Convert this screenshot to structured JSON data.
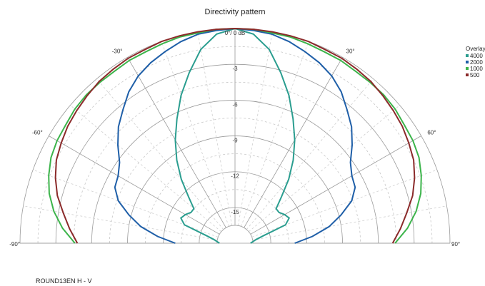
{
  "chart_data": {
    "type": "polar",
    "title": "Directivity pattern",
    "subtitle": "",
    "r_axis": {
      "unit": "dB",
      "ring_values": [
        0,
        -3,
        -6,
        -9,
        -12,
        -15
      ],
      "ring_labels": [
        "0°/ 0 dB",
        "-3",
        "-6",
        "-9",
        "-12",
        "-15"
      ],
      "min": -18,
      "max": 0
    },
    "angle_axis": {
      "range": [
        -90,
        90
      ],
      "labels": [
        "-90°",
        "-60°",
        "-30°",
        "30°",
        "60°",
        "90°"
      ],
      "label_angles": [
        -90,
        -60,
        -30,
        30,
        60,
        90
      ]
    },
    "grid": true,
    "legend": {
      "title": "Overlay",
      "position": "top-right"
    },
    "series": [
      {
        "name": "4000",
        "color": "#2a9d8f",
        "points": [
          [
            -90,
            -16.7
          ],
          [
            -85,
            -16.5
          ],
          [
            -80,
            -16.2
          ],
          [
            -75,
            -15.5
          ],
          [
            -70,
            -13.5
          ],
          [
            -65,
            -13.0
          ],
          [
            -60,
            -13.2
          ],
          [
            -55,
            -13.5
          ],
          [
            -50,
            -13.5
          ],
          [
            -45,
            -12.5
          ],
          [
            -40,
            -11.0
          ],
          [
            -35,
            -9.5
          ],
          [
            -30,
            -8.0
          ],
          [
            -25,
            -6.5
          ],
          [
            -20,
            -4.8
          ],
          [
            -15,
            -3.2
          ],
          [
            -10,
            -1.5
          ],
          [
            -5,
            -0.4
          ],
          [
            0,
            0
          ],
          [
            5,
            -0.4
          ],
          [
            10,
            -1.5
          ],
          [
            15,
            -3.2
          ],
          [
            20,
            -4.8
          ],
          [
            25,
            -6.5
          ],
          [
            30,
            -8.0
          ],
          [
            35,
            -9.5
          ],
          [
            40,
            -11.0
          ],
          [
            45,
            -12.5
          ],
          [
            50,
            -13.5
          ],
          [
            55,
            -13.5
          ],
          [
            60,
            -13.2
          ],
          [
            65,
            -13.0
          ],
          [
            70,
            -13.5
          ],
          [
            75,
            -15.5
          ],
          [
            80,
            -16.2
          ],
          [
            85,
            -16.5
          ],
          [
            90,
            -16.7
          ]
        ]
      },
      {
        "name": "2000",
        "color": "#1f5fa8",
        "points": [
          [
            -90,
            -13.0
          ],
          [
            -85,
            -11.5
          ],
          [
            -80,
            -10.0
          ],
          [
            -75,
            -8.8
          ],
          [
            -70,
            -7.6
          ],
          [
            -65,
            -6.9
          ],
          [
            -60,
            -6.7
          ],
          [
            -55,
            -6.2
          ],
          [
            -50,
            -5.2
          ],
          [
            -45,
            -4.2
          ],
          [
            -40,
            -3.4
          ],
          [
            -35,
            -2.5
          ],
          [
            -30,
            -1.8
          ],
          [
            -25,
            -1.3
          ],
          [
            -20,
            -0.9
          ],
          [
            -15,
            -0.5
          ],
          [
            -10,
            -0.2
          ],
          [
            -5,
            -0.1
          ],
          [
            0,
            0
          ],
          [
            5,
            -0.1
          ],
          [
            10,
            -0.2
          ],
          [
            15,
            -0.5
          ],
          [
            20,
            -0.9
          ],
          [
            25,
            -1.3
          ],
          [
            30,
            -1.8
          ],
          [
            35,
            -2.5
          ],
          [
            40,
            -3.4
          ],
          [
            45,
            -4.2
          ],
          [
            50,
            -5.2
          ],
          [
            55,
            -6.2
          ],
          [
            60,
            -6.7
          ],
          [
            65,
            -6.9
          ],
          [
            70,
            -7.6
          ],
          [
            75,
            -8.8
          ],
          [
            80,
            -10.0
          ],
          [
            85,
            -11.5
          ],
          [
            90,
            -13.0
          ]
        ]
      },
      {
        "name": "1000",
        "color": "#3cb44b",
        "points": [
          [
            -90,
            -4.6
          ],
          [
            -85,
            -3.5
          ],
          [
            -80,
            -2.6
          ],
          [
            -75,
            -1.9
          ],
          [
            -70,
            -1.4
          ],
          [
            -65,
            -1.0
          ],
          [
            -60,
            -0.8
          ],
          [
            -55,
            -0.7
          ],
          [
            -50,
            -0.5
          ],
          [
            -45,
            -0.4
          ],
          [
            -40,
            -0.4
          ],
          [
            -35,
            -0.4
          ],
          [
            -30,
            -0.3
          ],
          [
            -25,
            -0.3
          ],
          [
            -20,
            -0.2
          ],
          [
            -15,
            -0.1
          ],
          [
            -10,
            -0.1
          ],
          [
            -5,
            0
          ],
          [
            0,
            0
          ],
          [
            5,
            0
          ],
          [
            10,
            -0.1
          ],
          [
            15,
            -0.1
          ],
          [
            20,
            -0.2
          ],
          [
            25,
            -0.3
          ],
          [
            30,
            -0.3
          ],
          [
            35,
            -0.4
          ],
          [
            40,
            -0.4
          ],
          [
            45,
            -0.4
          ],
          [
            50,
            -0.5
          ],
          [
            55,
            -0.7
          ],
          [
            60,
            -0.8
          ],
          [
            65,
            -1.0
          ],
          [
            70,
            -1.4
          ],
          [
            75,
            -1.9
          ],
          [
            80,
            -2.6
          ],
          [
            85,
            -3.5
          ],
          [
            90,
            -4.6
          ]
        ]
      },
      {
        "name": "500",
        "color": "#8b2a2a",
        "points": [
          [
            -90,
            -4.8
          ],
          [
            -85,
            -4.1
          ],
          [
            -80,
            -3.4
          ],
          [
            -75,
            -2.6
          ],
          [
            -70,
            -2.0
          ],
          [
            -65,
            -1.5
          ],
          [
            -60,
            -1.2
          ],
          [
            -55,
            -0.9
          ],
          [
            -50,
            -0.7
          ],
          [
            -45,
            -0.5
          ],
          [
            -40,
            -0.3
          ],
          [
            -35,
            -0.2
          ],
          [
            -30,
            -0.1
          ],
          [
            -25,
            -0.1
          ],
          [
            -20,
            0
          ],
          [
            -15,
            0
          ],
          [
            -10,
            0
          ],
          [
            -5,
            0
          ],
          [
            0,
            0
          ],
          [
            5,
            0
          ],
          [
            10,
            0
          ],
          [
            15,
            0
          ],
          [
            20,
            0
          ],
          [
            25,
            -0.1
          ],
          [
            30,
            -0.1
          ],
          [
            35,
            -0.2
          ],
          [
            40,
            -0.3
          ],
          [
            45,
            -0.5
          ],
          [
            50,
            -0.7
          ],
          [
            55,
            -0.9
          ],
          [
            60,
            -1.2
          ],
          [
            65,
            -1.5
          ],
          [
            70,
            -2.0
          ],
          [
            75,
            -2.6
          ],
          [
            80,
            -3.4
          ],
          [
            85,
            -4.1
          ],
          [
            90,
            -4.8
          ]
        ]
      }
    ],
    "legend_order": [
      "4000",
      "2000",
      "1000",
      "500"
    ],
    "caption": "ROUND13EN H - V"
  }
}
